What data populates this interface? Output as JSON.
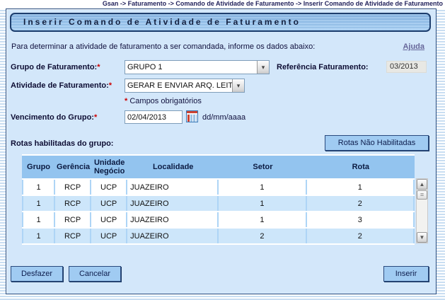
{
  "breadcrumb": "Gsan -> Faturamento -> Comando de Atividade de Faturamento -> Inserir Comando de Atividade de Faturamento",
  "title": "Inserir Comando de Atividade de Faturamento",
  "instruction": "Para determinar a atividade de faturamento a ser comandada, informe os dados abaixo:",
  "help_link": "Ajuda",
  "form": {
    "grupo_label": "Grupo de Faturamento:",
    "grupo_value": "GRUPO 1",
    "referencia_label": "Referência Faturamento:",
    "referencia_value": "03/2013",
    "atividade_label": "Atividade de Faturamento:",
    "atividade_value": "GERAR E ENVIAR ARQ. LEIT",
    "required_marker": "*",
    "required_note_text": "Campos obrigatórios",
    "vencimento_label": "Vencimento do Grupo:",
    "vencimento_value": "02/04/2013",
    "date_format_hint": "dd/mm/aaaa"
  },
  "rotas": {
    "section_label": "Rotas habilitadas do grupo:",
    "button_label": "Rotas Não Habilitadas",
    "table": {
      "headers": [
        "Grupo",
        "Gerência",
        "Unidade Negócio",
        "Localidade",
        "Setor",
        "Rota"
      ],
      "rows": [
        [
          "1",
          "RCP",
          "UCP",
          "JUAZEIRO",
          "1",
          "1"
        ],
        [
          "1",
          "RCP",
          "UCP",
          "JUAZEIRO",
          "1",
          "2"
        ],
        [
          "1",
          "RCP",
          "UCP",
          "JUAZEIRO",
          "1",
          "3"
        ],
        [
          "1",
          "RCP",
          "UCP",
          "JUAZEIRO",
          "2",
          "2"
        ]
      ]
    }
  },
  "actions": {
    "desfazer": "Desfazer",
    "cancelar": "Cancelar",
    "inserir": "Inserir"
  },
  "icons": {
    "dropdown_arrow": "▾",
    "scroll_up": "▲",
    "scroll_down": "▼",
    "thumb_grip": "≡"
  },
  "colors": {
    "panel_bg": "#d3e7fa",
    "accent_blue": "#a0cbf2",
    "table_header_blue": "#93c4ef",
    "border_navy": "#2b4d7e",
    "required_red": "#cc0000",
    "help_link_color": "#666699"
  }
}
